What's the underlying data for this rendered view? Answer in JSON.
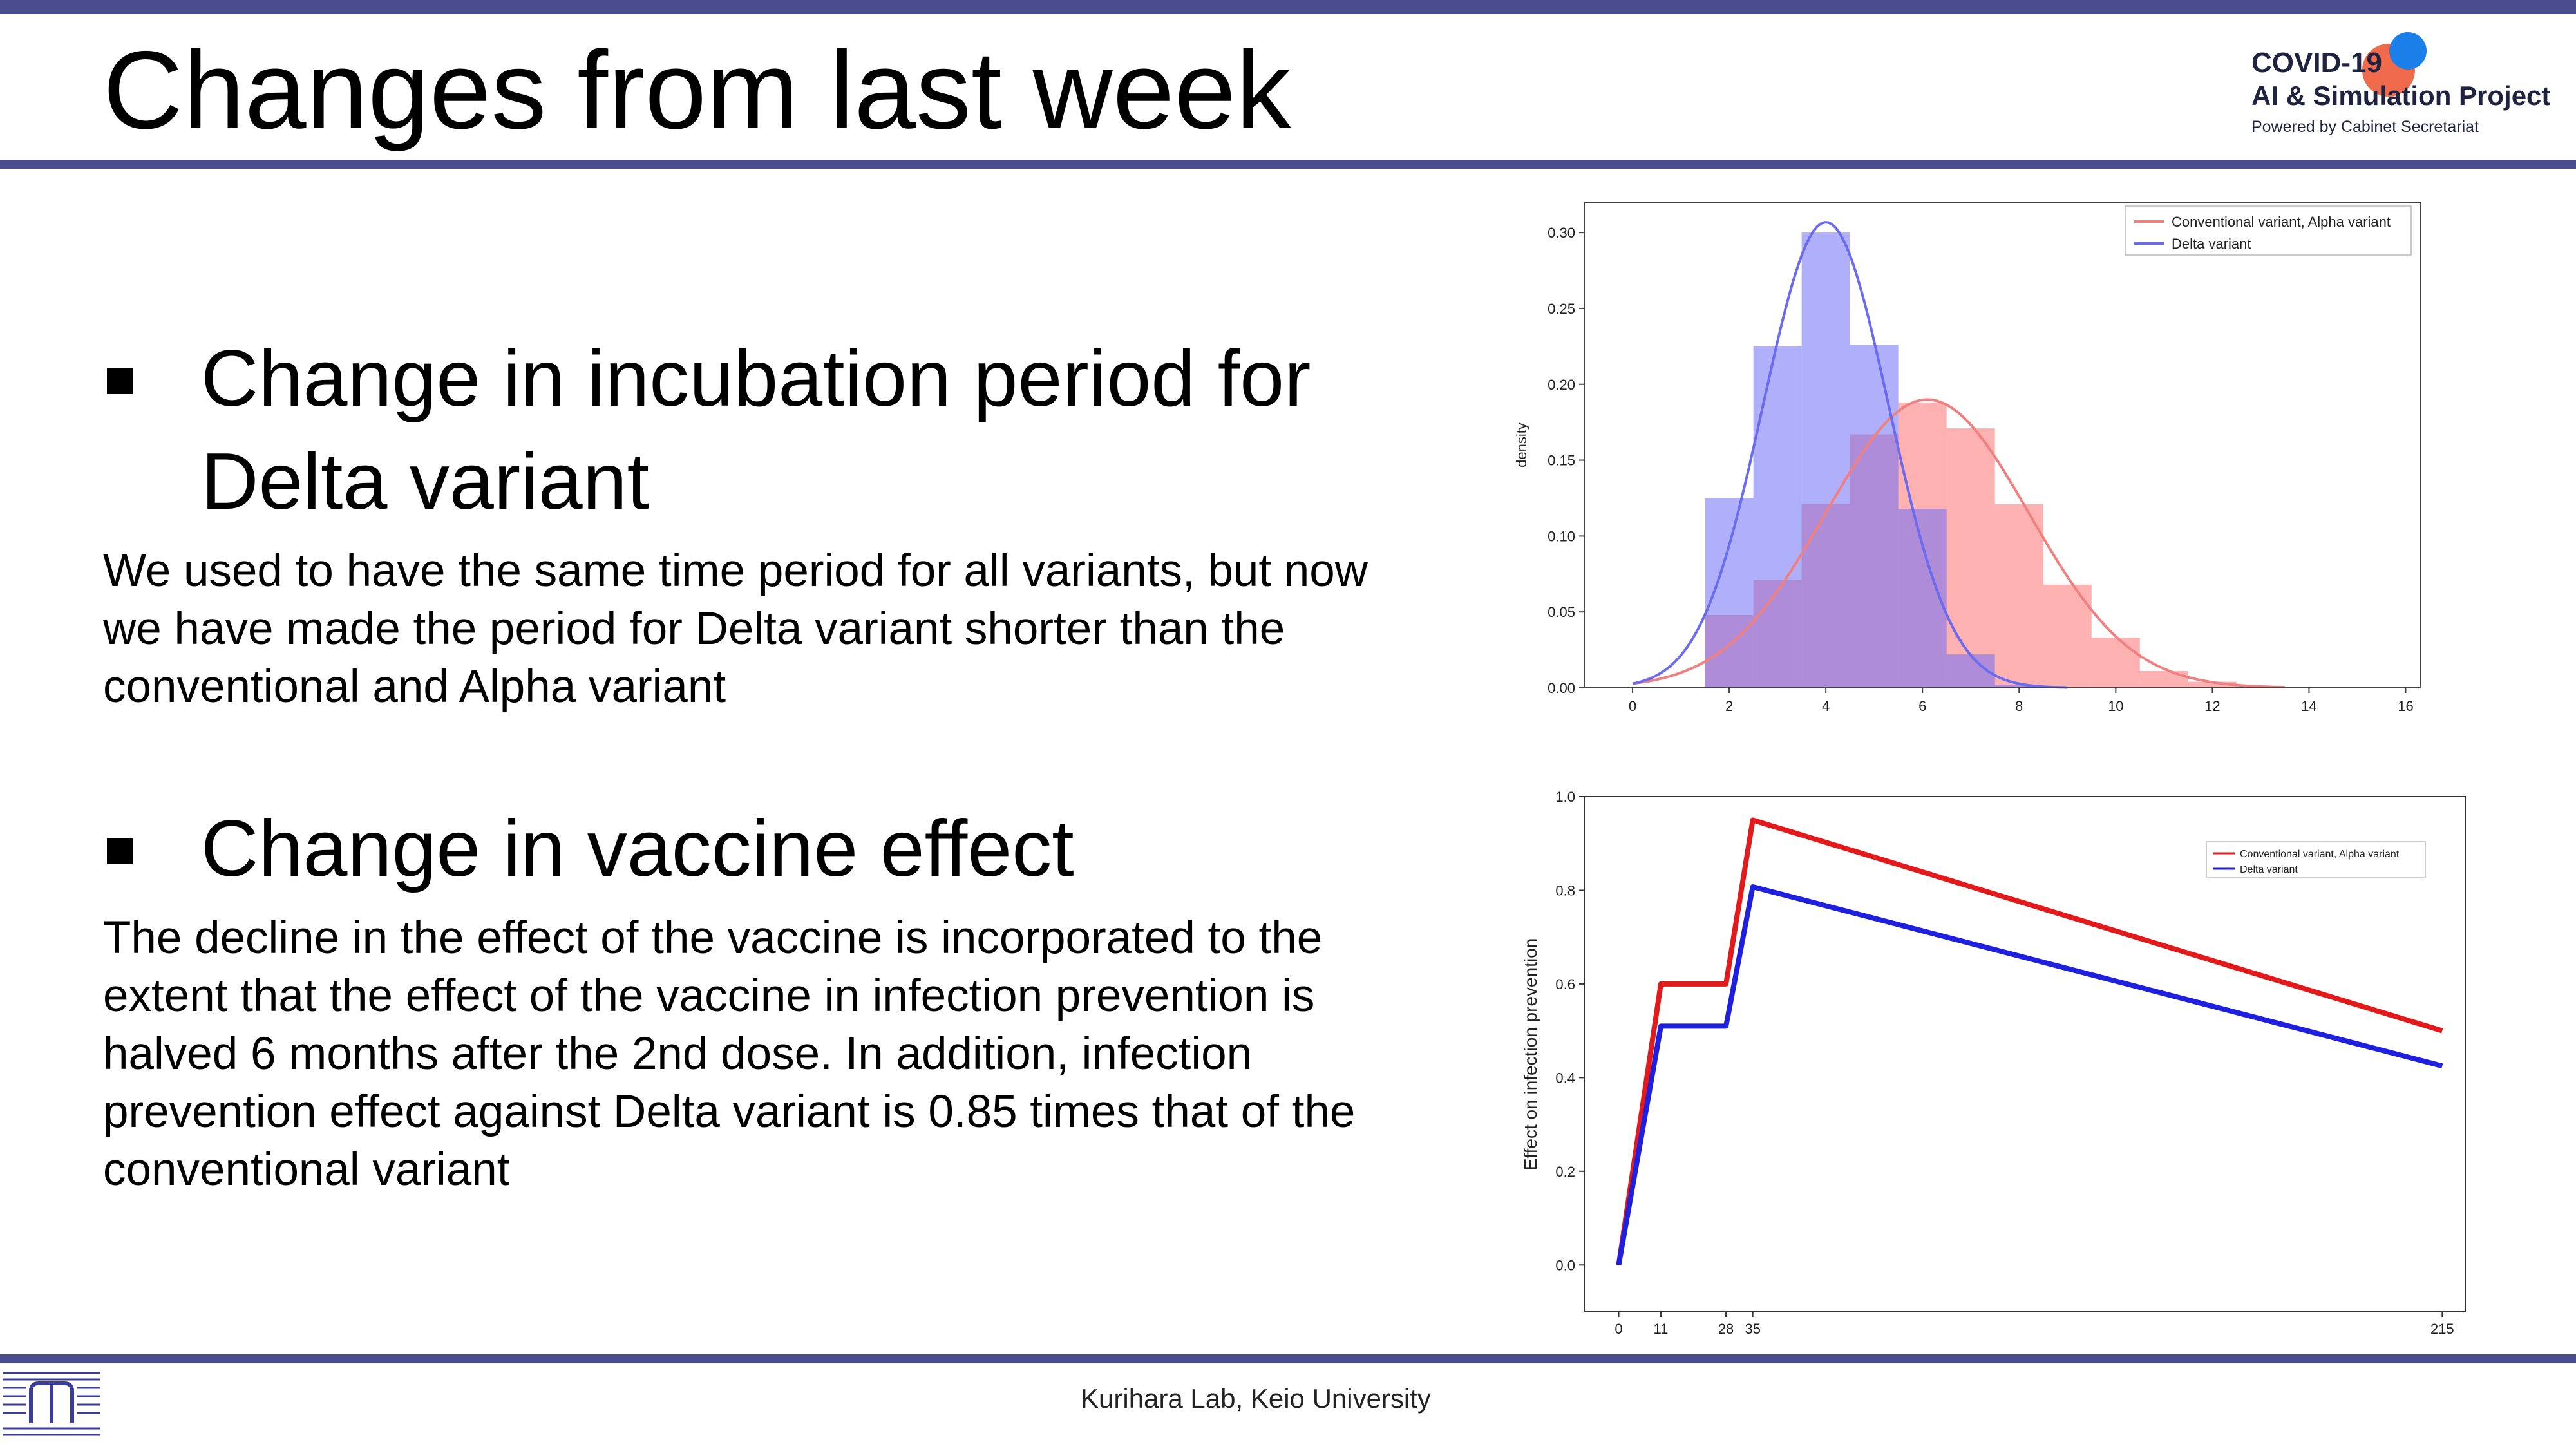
{
  "header": {
    "title": "Changes from last week",
    "logo": {
      "line1": "COVID-19",
      "line2": "AI & Simulation Project",
      "line3": "Powered by Cabinet Secretariat"
    }
  },
  "sections": [
    {
      "heading_lines": [
        "Change in incubation period for",
        "Delta variant"
      ],
      "body_lines": [
        "We used to have the same time period for all variants, but now",
        "we have made the period for Delta variant shorter than the",
        "conventional and Alpha variant"
      ]
    },
    {
      "heading_lines": [
        "Change in vaccine effect"
      ],
      "body_lines": [
        "The decline in the effect of the vaccine is incorporated to the",
        "extent that the effect of the vaccine in infection prevention is",
        "halved 6 months after the 2nd dose. In addition, infection",
        "prevention effect against Delta variant is 0.85 times that of the",
        "conventional variant"
      ]
    }
  ],
  "footer": {
    "text": "Kurihara Lab, Keio University",
    "lab_logo_icon": "kurihara-lab-logo-icon"
  },
  "colors": {
    "accent": "#4b4b8f",
    "red": "#e31a1c",
    "blue": "#1f1fe0"
  },
  "chart_data": [
    {
      "type": "histogram",
      "xlabel": "",
      "ylabel": "density",
      "xlim": [
        -1,
        16.3
      ],
      "ylim": [
        0,
        0.32
      ],
      "x_ticks": [
        "0",
        "2",
        "4",
        "6",
        "8",
        "10",
        "12",
        "14",
        "16"
      ],
      "y_ticks": [
        "0.00",
        "0.05",
        "0.10",
        "0.15",
        "0.20",
        "0.25",
        "0.30"
      ],
      "legend_position": "top-right",
      "bin_edges": [
        1.5,
        2.5,
        3.5,
        4.5,
        5.5,
        6.5,
        7.5,
        8.5,
        9.5,
        10.5,
        11.5,
        12.5
      ],
      "series": [
        {
          "name": "Conventional variant, Alpha variant",
          "color": "#f08080",
          "fill": "rgba(252,125,125,0.6)",
          "bin_heights": [
            0.048,
            0.071,
            0.121,
            0.167,
            0.188,
            0.171,
            0.121,
            0.068,
            0.033,
            0.011,
            0.004
          ],
          "curve": {
            "mean": 6.1,
            "sd": 2.1,
            "x_from": 0,
            "x_to": 13.5
          }
        },
        {
          "name": "Delta variant",
          "color": "#6b6bf0",
          "fill": "rgba(110,110,245,0.55)",
          "bin_heights": [
            0.125,
            0.225,
            0.3,
            0.226,
            0.118,
            0.022,
            0.002,
            0,
            0,
            0,
            0
          ],
          "curve": {
            "mean": 4.0,
            "sd": 1.3,
            "x_from": 0,
            "x_to": 9.0
          }
        }
      ]
    },
    {
      "type": "line",
      "xlabel": "",
      "ylabel": "Effect on infection prevention",
      "xlim": [
        -9,
        221
      ],
      "ylim": [
        -0.1,
        1.0
      ],
      "x_ticks": [
        0,
        11,
        28,
        35,
        215
      ],
      "x_tick_labels": [
        "0",
        "11",
        "28",
        "35",
        "215"
      ],
      "y_ticks": [
        "0.0",
        "0.2",
        "0.4",
        "0.6",
        "0.8",
        "1.0"
      ],
      "legend_position": "top-right",
      "series": [
        {
          "name": "Conventional variant, Alpha variant",
          "color": "#e31a1c",
          "x": [
            0,
            11,
            28,
            35,
            215
          ],
          "y": [
            0.0,
            0.6,
            0.6,
            0.95,
            0.5
          ]
        },
        {
          "name": "Delta variant",
          "color": "#1f1fe0",
          "x": [
            0,
            11,
            28,
            35,
            215
          ],
          "y": [
            0.0,
            0.51,
            0.51,
            0.8075,
            0.425
          ]
        }
      ]
    }
  ]
}
